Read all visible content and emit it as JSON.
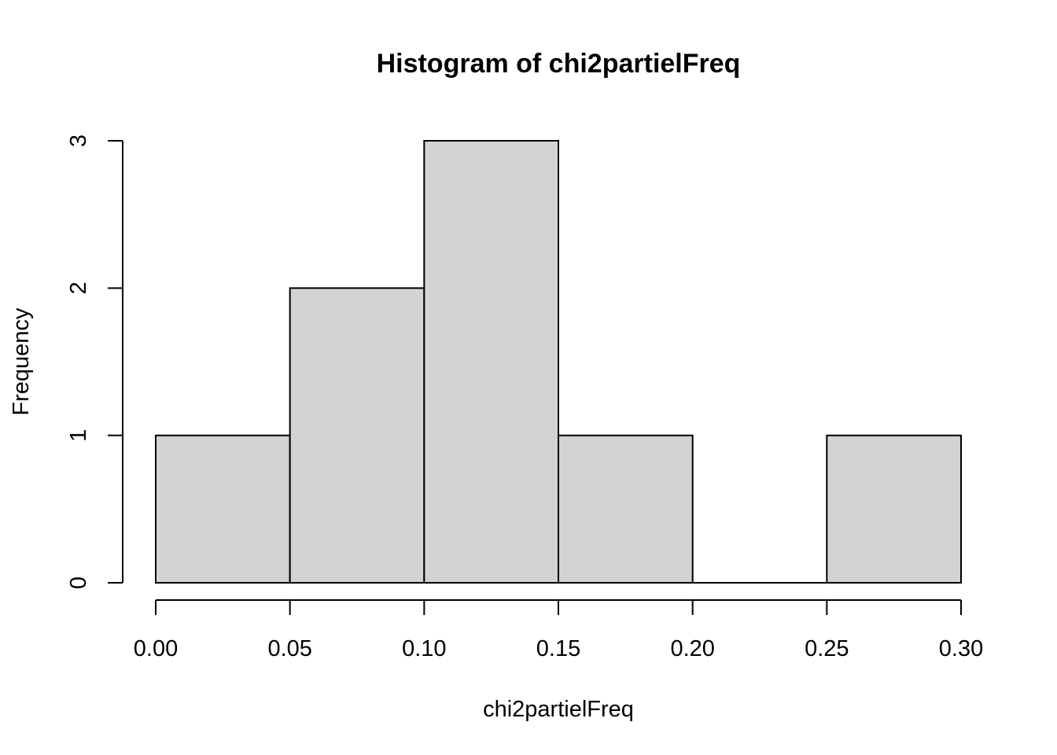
{
  "chart_data": {
    "type": "bar",
    "title": "Histogram of chi2partielFreq",
    "xlabel": "chi2partielFreq",
    "ylabel": "Frequency",
    "bins": [
      {
        "from": 0.0,
        "to": 0.05,
        "count": 1
      },
      {
        "from": 0.05,
        "to": 0.1,
        "count": 2
      },
      {
        "from": 0.1,
        "to": 0.15,
        "count": 3
      },
      {
        "from": 0.15,
        "to": 0.2,
        "count": 1
      },
      {
        "from": 0.2,
        "to": 0.25,
        "count": 0
      },
      {
        "from": 0.25,
        "to": 0.3,
        "count": 1
      }
    ],
    "xlim": [
      0.0,
      0.3
    ],
    "ylim": [
      0,
      3
    ],
    "x_ticks": [
      "0.00",
      "0.05",
      "0.10",
      "0.15",
      "0.20",
      "0.25",
      "0.30"
    ],
    "y_ticks": [
      "0",
      "1",
      "2",
      "3"
    ],
    "colors": {
      "bar_fill": "#d3d3d3",
      "bar_stroke": "#000000"
    }
  }
}
